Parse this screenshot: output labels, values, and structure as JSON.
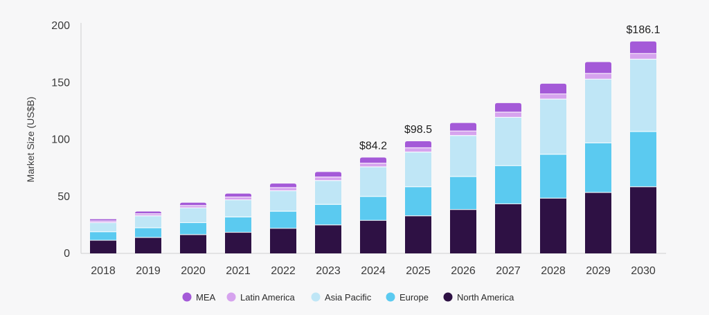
{
  "chart_data": {
    "type": "bar",
    "stacked": true,
    "ylabel": "Market Size (US$B)",
    "ylim": [
      0,
      200
    ],
    "yticks": [
      0,
      50,
      100,
      150,
      200
    ],
    "categories": [
      "2018",
      "2019",
      "2020",
      "2021",
      "2022",
      "2023",
      "2024",
      "2025",
      "2026",
      "2027",
      "2028",
      "2029",
      "2030"
    ],
    "series": [
      {
        "name": "North America",
        "color": "#2e1144",
        "values": [
          11.5,
          14,
          16.5,
          18.5,
          22,
          25,
          29,
          33,
          38.5,
          43.5,
          48.5,
          53.5,
          58.5
        ]
      },
      {
        "name": "Europe",
        "color": "#5bcaf0",
        "values": [
          7.5,
          8.5,
          10.5,
          13.5,
          15,
          18,
          21,
          25.5,
          29,
          33.5,
          38.5,
          43.5,
          48.5
        ]
      },
      {
        "name": "Asia Pacific",
        "color": "#bfe6f6",
        "values": [
          8,
          10.5,
          13,
          15,
          18,
          21,
          26,
          30.5,
          36,
          42.5,
          48.5,
          56,
          63.5
        ]
      },
      {
        "name": "Latin America",
        "color": "#d6a3ee",
        "values": [
          1.5,
          1.8,
          2,
          2.5,
          2.8,
          3,
          3.2,
          3.7,
          4,
          4.5,
          4.5,
          5,
          5
        ]
      },
      {
        "name": "MEA",
        "color": "#a45ad8",
        "values": [
          1.5,
          2,
          2.5,
          3,
          3.5,
          4.5,
          5,
          5.8,
          7,
          8,
          9,
          10,
          10.6
        ]
      }
    ],
    "legend_order": [
      "MEA",
      "Latin America",
      "Asia Pacific",
      "Europe",
      "North America"
    ],
    "legend_position": "bottom",
    "grid": false,
    "annotations": [
      {
        "category": "2024",
        "text": "$84.2"
      },
      {
        "category": "2025",
        "text": "$98.5"
      },
      {
        "category": "2030",
        "text": "$186.1"
      }
    ]
  }
}
